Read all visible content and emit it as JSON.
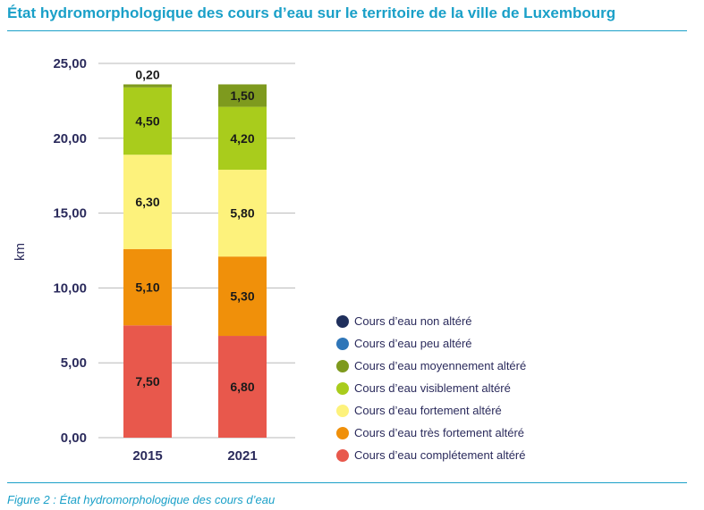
{
  "chart_data": {
    "type": "bar",
    "stacked": true,
    "title": "État hydromorphologique des cours d’eau sur le territoire de la ville de Luxembourg",
    "caption": "Figure 2 : État hydromorphologique des cours d’eau",
    "xlabel": "",
    "ylabel": "km",
    "ylim": [
      0,
      25
    ],
    "yticks": [
      "0,00",
      "5,00",
      "10,00",
      "15,00",
      "20,00",
      "25,00"
    ],
    "grid": true,
    "legend_position": "right",
    "categories": [
      "2015",
      "2021"
    ],
    "series": [
      {
        "name": "Cours d’eau complétement altéré",
        "color": "#e8584c",
        "values": [
          7.5,
          6.8
        ],
        "labels": [
          "7,50",
          "6,80"
        ]
      },
      {
        "name": "Cours d’eau très fortement altéré",
        "color": "#f0900a",
        "values": [
          5.1,
          5.3
        ],
        "labels": [
          "5,10",
          "5,30"
        ]
      },
      {
        "name": "Cours d’eau fortement altéré",
        "color": "#fdf27c",
        "values": [
          6.3,
          5.8
        ],
        "labels": [
          "6,30",
          "5,80"
        ]
      },
      {
        "name": "Cours d’eau visiblement altéré",
        "color": "#a9cc1c",
        "values": [
          4.5,
          4.2
        ],
        "labels": [
          "4,50",
          "4,20"
        ]
      },
      {
        "name": "Cours d’eau moyennement altéré",
        "color": "#7e9a1e",
        "values": [
          0.2,
          1.5
        ],
        "labels": [
          "0,20",
          "1,50"
        ]
      },
      {
        "name": "Cours d’eau peu altéré",
        "color": "#2f76b8",
        "values": [
          0,
          0
        ],
        "labels": [
          "",
          ""
        ]
      },
      {
        "name": "Cours d’eau non altéré",
        "color": "#1f2f5c",
        "values": [
          0,
          0
        ],
        "labels": [
          "",
          ""
        ]
      }
    ],
    "legend_order": [
      "Cours d’eau non altéré",
      "Cours d’eau peu altéré",
      "Cours d’eau moyennement altéré",
      "Cours d’eau visiblement altéré",
      "Cours d’eau fortement altéré",
      "Cours d’eau très fortement altéré",
      "Cours d’eau complétement altéré"
    ]
  }
}
